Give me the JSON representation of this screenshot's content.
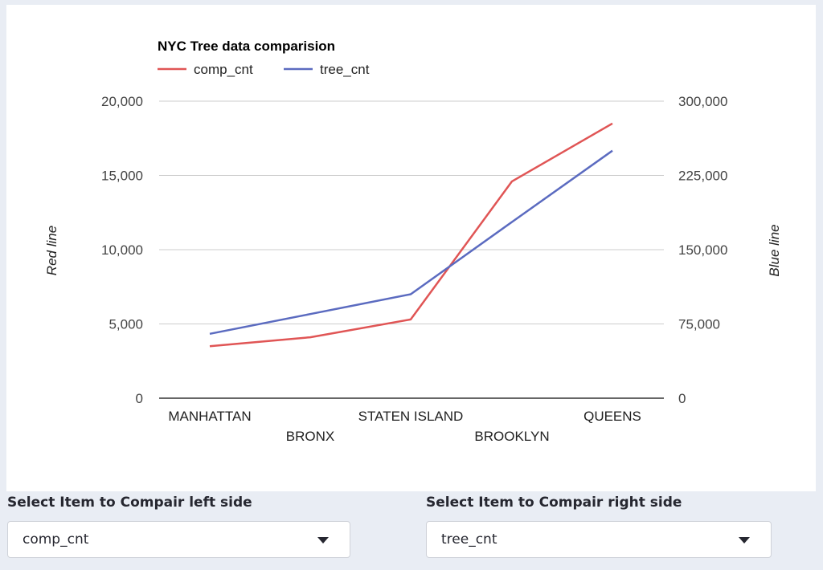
{
  "controls": {
    "left": {
      "label": "Select Item to Compair left side",
      "value": "comp_cnt"
    },
    "right": {
      "label": "Select Item to Compair right side",
      "value": "tree_cnt"
    }
  },
  "colors": {
    "red_series": "#e05555",
    "blue_series": "#5b6bc0",
    "grid": "#cccccc",
    "baseline": "#333333",
    "text": "#444444"
  },
  "chart_data": {
    "type": "line",
    "title": "NYC Tree data comparision",
    "categories": [
      "MANHATTAN",
      "BRONX",
      "STATEN ISLAND",
      "BROOKLYN",
      "QUEENS"
    ],
    "series": [
      {
        "name": "comp_cnt",
        "axis": "left",
        "color": "#e05555",
        "values": [
          3500,
          4100,
          5300,
          14600,
          18500
        ]
      },
      {
        "name": "tree_cnt",
        "axis": "right",
        "color": "#5b6bc0",
        "values": [
          65000,
          85000,
          105000,
          178000,
          250000
        ]
      }
    ],
    "left_axis": {
      "label": "Red line",
      "ylim": [
        0,
        20000
      ],
      "ticks": [
        0,
        5000,
        10000,
        15000,
        20000
      ],
      "tick_labels": [
        "0",
        "5,000",
        "10,000",
        "15,000",
        "20,000"
      ]
    },
    "right_axis": {
      "label": "Blue line",
      "ylim": [
        0,
        300000
      ],
      "ticks": [
        0,
        75000,
        150000,
        225000,
        300000
      ],
      "tick_labels": [
        "0",
        "75,000",
        "150,000",
        "225,000",
        "300,000"
      ]
    },
    "grid": true,
    "legend_position": "top-left"
  }
}
